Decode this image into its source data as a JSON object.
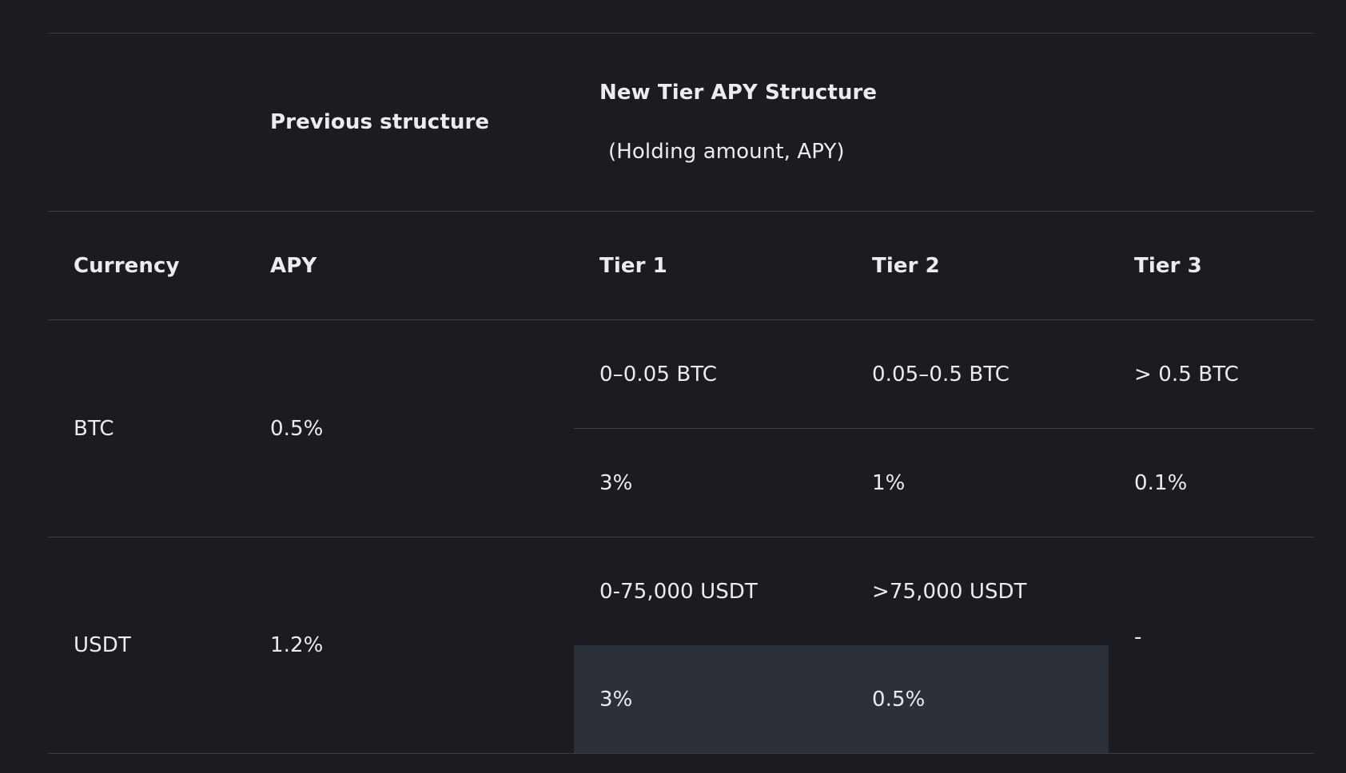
{
  "table": {
    "header_row1": {
      "previous": "Previous structure",
      "new_title": "New Tier APY Structure",
      "new_subtitle": "(Holding amount, APY)"
    },
    "header_row2": {
      "currency": "Currency",
      "apy": "APY",
      "tier1": "Tier 1",
      "tier2": "Tier 2",
      "tier3": "Tier 3"
    },
    "rows": [
      {
        "currency": "BTC",
        "previous_apy": "0.5%",
        "tier1_amount": "0–0.05 BTC",
        "tier2_amount": "0.05–0.5 BTC",
        "tier3_amount": "> 0.5 BTC",
        "tier1_apy": "3%",
        "tier2_apy": "1%",
        "tier3_apy": "0.1%"
      },
      {
        "currency": "USDT",
        "previous_apy": "1.2%",
        "tier1_amount": "0-75,000 USDT",
        "tier2_amount": ">75,000 USDT",
        "tier3": "-",
        "tier1_apy": "3%",
        "tier2_apy": "0.5%"
      }
    ]
  }
}
